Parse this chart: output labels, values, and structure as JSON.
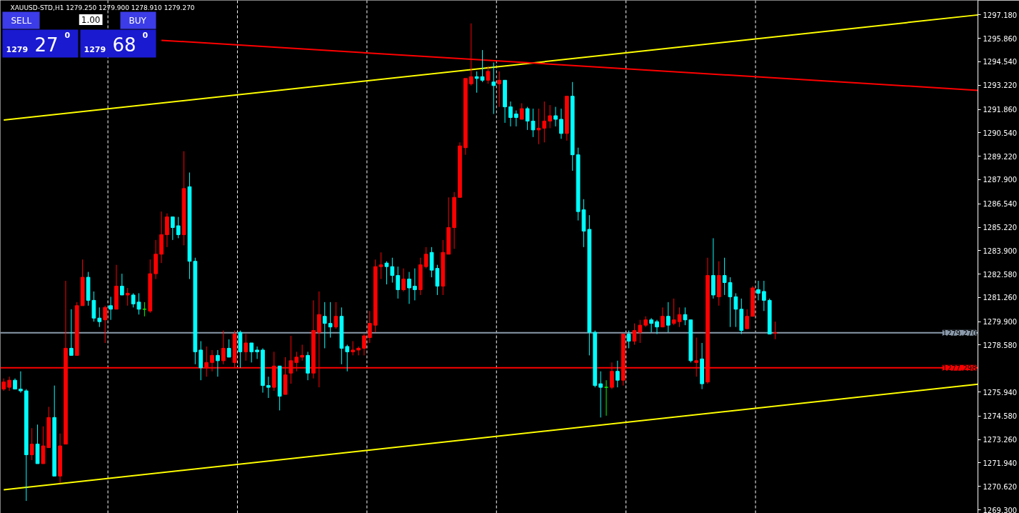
{
  "chart_data": {
    "type": "candlestick",
    "title": "XAUUSD-STD,H1  1279.250 1279.900 1278.910 1279.270",
    "annotations": [
      "SELL",
      "1.00",
      "BUY",
      "1279",
      "27",
      "0",
      "1279",
      "68",
      "0"
    ],
    "categories": [
      null,
      null,
      null,
      null,
      null,
      null,
      null,
      null,
      null,
      null,
      null,
      null,
      null,
      null,
      null,
      null,
      null,
      null,
      null,
      null,
      null,
      null,
      null,
      null,
      null,
      null,
      null,
      null,
      null,
      null,
      null,
      null,
      null,
      null,
      null,
      null,
      null,
      null,
      null,
      null,
      null,
      null,
      null,
      null,
      null,
      null,
      null,
      null,
      null,
      null,
      null,
      null,
      null,
      null,
      null,
      null,
      null,
      null,
      null,
      null,
      null,
      null,
      null,
      null,
      null,
      null,
      null,
      null,
      null,
      null,
      null,
      null,
      null,
      null,
      null,
      null,
      null,
      null,
      null,
      null,
      null,
      null,
      null,
      null,
      null,
      null,
      null,
      null,
      null,
      null,
      null,
      null,
      null,
      null,
      null,
      null,
      null,
      null,
      null,
      null,
      null,
      null,
      null,
      null,
      null,
      null,
      null,
      null,
      null,
      null,
      null,
      null,
      null,
      null,
      null,
      null,
      null,
      null,
      null,
      null,
      null,
      null,
      null,
      null,
      null,
      null,
      null,
      null,
      null,
      null,
      null,
      null,
      null,
      null,
      null,
      null,
      null,
      null,
      null,
      null,
      null,
      null,
      null,
      null,
      null,
      null,
      null,
      null,
      null,
      null,
      null,
      null,
      null,
      null,
      null,
      null,
      null,
      null,
      null,
      null,
      null,
      null,
      null,
      null,
      null,
      null,
      null,
      null,
      null,
      null,
      null,
      null,
      null,
      null
    ],
    "ohlc": [
      [
        1276.1,
        1276.7,
        1276.0,
        1276.5
      ],
      [
        1276.2,
        1276.8,
        1276.0,
        1276.6
      ],
      [
        1276.6,
        1276.7,
        1276.1,
        1276.1
      ],
      [
        1276.1,
        1277.1,
        1275.9,
        1276.0
      ],
      [
        1276.0,
        1276.1,
        1269.8,
        1272.4
      ],
      [
        1272.4,
        1273.9,
        1272.1,
        1273.0
      ],
      [
        1273.0,
        1274.1,
        1271.9,
        1271.9
      ],
      [
        1271.9,
        1274.0,
        1271.9,
        1272.9
      ],
      [
        1272.8,
        1275.1,
        1272.8,
        1274.5
      ],
      [
        1274.5,
        1276.3,
        1271.2,
        1271.2
      ],
      [
        1271.2,
        1273.6,
        1270.8,
        1272.9
      ],
      [
        1273.0,
        1282.2,
        1273.0,
        1278.4
      ],
      [
        1278.4,
        1280.6,
        1278.0,
        1278.0
      ],
      [
        1278.0,
        1281.0,
        1278.0,
        1280.8
      ],
      [
        1280.8,
        1283.4,
        1280.8,
        1282.4
      ],
      [
        1282.4,
        1282.7,
        1280.8,
        1281.1
      ],
      [
        1281.1,
        1281.6,
        1279.9,
        1280.1
      ],
      [
        1280.1,
        1280.7,
        1279.6,
        1279.9
      ],
      [
        1280.0,
        1280.8,
        1278.7,
        1280.7
      ],
      [
        1280.8,
        1281.3,
        1280.0,
        1280.6
      ],
      [
        1280.6,
        1283.1,
        1280.6,
        1281.9
      ],
      [
        1281.9,
        1282.6,
        1281.4,
        1281.4
      ],
      [
        1281.4,
        1281.8,
        1280.8,
        1281.5
      ],
      [
        1281.4,
        1281.5,
        1280.7,
        1280.9
      ],
      [
        1281.0,
        1281.5,
        1280.3,
        1280.6
      ],
      [
        1280.6,
        1281.0,
        1280.2,
        1280.6
      ],
      [
        1280.5,
        1283.4,
        1280.4,
        1282.6
      ],
      [
        1282.6,
        1284.5,
        1282.3,
        1283.7
      ],
      [
        1283.7,
        1286.1,
        1283.2,
        1284.8
      ],
      [
        1284.8,
        1286.0,
        1284.1,
        1285.8
      ],
      [
        1285.8,
        1285.8,
        1284.5,
        1285.2
      ],
      [
        1285.3,
        1285.8,
        1284.6,
        1284.8
      ],
      [
        1284.8,
        1289.5,
        1284.2,
        1287.4
      ],
      [
        1287.5,
        1288.3,
        1282.3,
        1283.3
      ],
      [
        1283.3,
        1283.5,
        1277.5,
        1278.2
      ],
      [
        1278.3,
        1278.8,
        1276.6,
        1277.3
      ],
      [
        1277.3,
        1278.5,
        1276.8,
        1277.6
      ],
      [
        1277.6,
        1278.3,
        1277.1,
        1278.0
      ],
      [
        1278.0,
        1278.3,
        1276.8,
        1277.7
      ],
      [
        1277.7,
        1279.4,
        1277.5,
        1278.4
      ],
      [
        1278.4,
        1278.9,
        1277.9,
        1277.9
      ],
      [
        1277.6,
        1279.4,
        1277.3,
        1279.2
      ],
      [
        1279.3,
        1279.4,
        1277.3,
        1278.2
      ],
      [
        1278.2,
        1279.2,
        1277.7,
        1278.7
      ],
      [
        1278.7,
        1278.7,
        1277.6,
        1278.2
      ],
      [
        1278.3,
        1278.5,
        1277.8,
        1278.2
      ],
      [
        1278.3,
        1278.4,
        1275.9,
        1276.3
      ],
      [
        1276.3,
        1276.8,
        1275.6,
        1276.2
      ],
      [
        1276.2,
        1278.2,
        1276.0,
        1277.4
      ],
      [
        1277.4,
        1277.4,
        1274.9,
        1275.7
      ],
      [
        1275.8,
        1277.9,
        1275.8,
        1276.9
      ],
      [
        1277.0,
        1279.1,
        1276.4,
        1277.7
      ],
      [
        1277.6,
        1278.2,
        1277.1,
        1277.9
      ],
      [
        1277.9,
        1278.6,
        1277.7,
        1278.0
      ],
      [
        1278.0,
        1278.2,
        1276.6,
        1277.0
      ],
      [
        1277.0,
        1281.1,
        1276.7,
        1279.4
      ],
      [
        1279.3,
        1281.6,
        1276.2,
        1280.3
      ],
      [
        1280.2,
        1281.0,
        1278.4,
        1279.8
      ],
      [
        1279.8,
        1281.0,
        1279.0,
        1279.6
      ],
      [
        1279.6,
        1281.0,
        1279.5,
        1280.2
      ],
      [
        1280.2,
        1280.7,
        1277.5,
        1278.4
      ],
      [
        1278.5,
        1278.6,
        1277.1,
        1278.2
      ],
      [
        1278.2,
        1278.8,
        1278.0,
        1278.3
      ],
      [
        1278.3,
        1278.5,
        1278.0,
        1278.4
      ],
      [
        1278.4,
        1279.2,
        1278.0,
        1279.1
      ],
      [
        1279.0,
        1280.5,
        1278.7,
        1279.8
      ],
      [
        1279.7,
        1283.4,
        1279.3,
        1283.0
      ],
      [
        1283.0,
        1283.8,
        1282.3,
        1283.1
      ],
      [
        1283.2,
        1283.3,
        1282.0,
        1283.0
      ],
      [
        1283.0,
        1283.5,
        1282.1,
        1282.5
      ],
      [
        1282.5,
        1283.0,
        1281.2,
        1281.7
      ],
      [
        1281.7,
        1282.9,
        1281.6,
        1282.3
      ],
      [
        1282.3,
        1282.7,
        1280.9,
        1281.8
      ],
      [
        1281.9,
        1282.9,
        1281.1,
        1281.7
      ],
      [
        1281.7,
        1283.5,
        1281.4,
        1283.1
      ],
      [
        1283.0,
        1284.1,
        1282.9,
        1283.7
      ],
      [
        1283.8,
        1284.1,
        1282.4,
        1282.8
      ],
      [
        1282.9,
        1283.1,
        1281.4,
        1281.9
      ],
      [
        1281.9,
        1284.5,
        1281.4,
        1283.8
      ],
      [
        1283.7,
        1286.9,
        1283.7,
        1285.2
      ],
      [
        1285.2,
        1287.2,
        1284.0,
        1286.9
      ],
      [
        1286.9,
        1290.0,
        1286.9,
        1289.8
      ],
      [
        1289.7,
        1293.6,
        1289.3,
        1293.6
      ],
      [
        1293.3,
        1296.7,
        1293.2,
        1293.7
      ],
      [
        1293.7,
        1294.0,
        1292.8,
        1293.6
      ],
      [
        1293.7,
        1295.2,
        1293.4,
        1293.5
      ],
      [
        1293.5,
        1294.3,
        1293.3,
        1294.0
      ],
      [
        1293.4,
        1294.5,
        1291.6,
        1293.2
      ],
      [
        1293.3,
        1294.0,
        1292.0,
        1293.5
      ],
      [
        1293.5,
        1293.5,
        1291.1,
        1292.0
      ],
      [
        1292.0,
        1292.3,
        1290.9,
        1291.4
      ],
      [
        1291.6,
        1291.8,
        1290.9,
        1291.4
      ],
      [
        1291.3,
        1292.2,
        1291.3,
        1291.9
      ],
      [
        1291.9,
        1292.0,
        1290.7,
        1291.2
      ],
      [
        1291.2,
        1291.9,
        1290.3,
        1290.7
      ],
      [
        1290.7,
        1291.9,
        1289.9,
        1290.8
      ],
      [
        1290.8,
        1292.3,
        1290.0,
        1291.2
      ],
      [
        1291.2,
        1292.1,
        1290.8,
        1291.5
      ],
      [
        1291.5,
        1292.0,
        1290.9,
        1291.3
      ],
      [
        1291.3,
        1291.9,
        1290.2,
        1290.5
      ],
      [
        1290.5,
        1292.6,
        1290.1,
        1292.6
      ],
      [
        1292.6,
        1293.4,
        1288.4,
        1289.3
      ],
      [
        1289.3,
        1289.7,
        1285.6,
        1286.1
      ],
      [
        1286.2,
        1286.8,
        1284.1,
        1285.0
      ],
      [
        1285.1,
        1285.9,
        1278.0,
        1279.3
      ],
      [
        1279.3,
        1279.4,
        1276.2,
        1276.3
      ],
      [
        1276.4,
        1277.1,
        1274.5,
        1276.2
      ],
      [
        1276.2,
        1276.6,
        1274.6,
        1276.2
      ],
      [
        1276.2,
        1277.6,
        1276.1,
        1277.1
      ],
      [
        1277.1,
        1277.7,
        1276.2,
        1276.6
      ],
      [
        1276.6,
        1279.2,
        1276.3,
        1279.2
      ],
      [
        1279.2,
        1279.4,
        1278.4,
        1278.8
      ],
      [
        1278.8,
        1279.8,
        1278.6,
        1279.4
      ],
      [
        1279.3,
        1280.0,
        1278.7,
        1279.7
      ],
      [
        1279.7,
        1280.2,
        1279.6,
        1280.0
      ],
      [
        1280.0,
        1280.1,
        1279.3,
        1279.8
      ],
      [
        1279.9,
        1280.0,
        1279.2,
        1279.6
      ],
      [
        1279.6,
        1280.7,
        1279.6,
        1280.2
      ],
      [
        1280.2,
        1281.0,
        1279.3,
        1279.7
      ],
      [
        1279.8,
        1281.2,
        1279.7,
        1280.0
      ],
      [
        1279.9,
        1280.7,
        1279.6,
        1280.3
      ],
      [
        1280.3,
        1280.7,
        1279.7,
        1280.0
      ],
      [
        1280.0,
        1280.0,
        1277.6,
        1277.7
      ],
      [
        1277.6,
        1279.0,
        1276.8,
        1277.7
      ],
      [
        1277.8,
        1278.7,
        1276.1,
        1276.4
      ],
      [
        1276.5,
        1283.5,
        1276.4,
        1282.5
      ],
      [
        1282.5,
        1284.6,
        1281.2,
        1281.4
      ],
      [
        1281.3,
        1283.3,
        1280.8,
        1282.5
      ],
      [
        1282.5,
        1283.5,
        1281.4,
        1282.1
      ],
      [
        1282.1,
        1282.4,
        1279.6,
        1281.3
      ],
      [
        1281.3,
        1281.5,
        1279.6,
        1280.6
      ],
      [
        1280.6,
        1281.2,
        1279.2,
        1279.4
      ],
      [
        1279.5,
        1280.6,
        1279.5,
        1280.2
      ],
      [
        1280.2,
        1281.9,
        1280.2,
        1281.8
      ],
      [
        1281.7,
        1282.2,
        1281.1,
        1281.5
      ],
      [
        1281.6,
        1282.2,
        1280.5,
        1281.1
      ],
      [
        1281.1,
        1281.2,
        1279.2,
        1279.2
      ],
      [
        1279.25,
        1279.9,
        1278.91,
        1279.27
      ],
      null,
      null,
      null,
      null,
      null,
      null,
      null,
      null,
      null,
      null,
      null,
      null,
      null,
      null,
      null,
      null,
      null,
      null,
      null,
      null,
      null,
      null,
      null,
      null,
      null,
      null,
      null,
      null,
      null,
      null,
      null,
      null,
      null,
      null,
      null,
      null
    ],
    "colors": [
      "#ff0000",
      "#ff0000",
      "#00ffff",
      "#00ffff",
      "#00ffff",
      "#ff0000",
      "#00ffff",
      "#ff0000",
      "#ff0000",
      "#00ffff",
      "#ff0000",
      "#ff0000",
      "#00ffff",
      "#ff0000",
      "#ff0000",
      "#00ffff",
      "#00ffff",
      "#00ffff",
      "#ff0000",
      "#00ffff",
      "#ff0000",
      "#00ffff",
      "#ff0000",
      "#00ffff",
      "#00ffff",
      "#00ff00",
      "#ff0000",
      "#ff0000",
      "#ff0000",
      "#ff0000",
      "#00ffff",
      "#00ffff",
      "#ff0000",
      "#00ffff",
      "#00ffff",
      "#00ffff",
      "#ff0000",
      "#ff0000",
      "#00ffff",
      "#ff0000",
      "#00ffff",
      "#ff0000",
      "#00ffff",
      "#ff0000",
      "#00ffff",
      "#00ffff",
      "#00ffff",
      "#00ffff",
      "#ff0000",
      "#00ffff",
      "#ff0000",
      "#ff0000",
      "#ff0000",
      "#ff0000",
      "#00ffff",
      "#ff0000",
      "#ff0000",
      "#00ffff",
      "#00ffff",
      "#ff0000",
      "#00ffff",
      "#00ffff",
      "#ff0000",
      "#ff0000",
      "#ff0000",
      "#ff0000",
      "#ff0000",
      "#ff0000",
      "#00ffff",
      "#00ffff",
      "#00ffff",
      "#ff0000",
      "#00ffff",
      "#00ffff",
      "#ff0000",
      "#ff0000",
      "#00ffff",
      "#00ffff",
      "#ff0000",
      "#ff0000",
      "#ff0000",
      "#ff0000",
      "#ff0000",
      "#ff0000",
      "#00ffff",
      "#00ffff",
      "#ff0000",
      "#00ffff",
      "#ff0000",
      "#00ffff",
      "#00ffff",
      "#00ffff",
      "#ff0000",
      "#00ffff",
      "#00ffff",
      "#ff0000",
      "#ff0000",
      "#ff0000",
      "#00ffff",
      "#00ffff",
      "#ff0000",
      "#00ffff",
      "#00ffff",
      "#00ffff",
      "#00ffff",
      "#00ffff",
      "#00ffff",
      "#00ff00",
      "#ff0000",
      "#00ffff",
      "#ff0000",
      "#00ffff",
      "#ff0000",
      "#ff0000",
      "#ff0000",
      "#00ffff",
      "#00ffff",
      "#ff0000",
      "#00ffff",
      "#ff0000",
      "#ff0000",
      "#00ffff",
      "#00ffff",
      "#ff0000",
      "#00ffff",
      "#ff0000",
      "#00ffff",
      "#ff0000",
      "#00ffff",
      "#00ffff",
      "#00ffff",
      "#00ffff",
      "#ff0000",
      "#ff0000",
      "#00ffff",
      "#00ffff",
      "#00ffff",
      "#ff0000",
      null,
      null,
      null,
      null,
      null,
      null,
      null,
      null,
      null,
      null,
      null,
      null,
      null,
      null,
      null,
      null,
      null,
      null,
      null,
      null,
      null,
      null,
      null,
      null,
      null,
      null,
      null,
      null,
      null,
      null,
      null,
      null,
      null,
      null,
      null,
      null
    ],
    "series": [
      {
        "type": "line",
        "color": "#ffff00",
        "values": [
          1291.26,
          null,
          null,
          null,
          null,
          null,
          null,
          null,
          null,
          null,
          null,
          null,
          null,
          null,
          null,
          null,
          null,
          null,
          null,
          null,
          null,
          null,
          null,
          null,
          null,
          null,
          null,
          null,
          null,
          null,
          null,
          null,
          null,
          null,
          null,
          null,
          null,
          null,
          null,
          null,
          null,
          null,
          null,
          null,
          null,
          null,
          null,
          null,
          null,
          null,
          null,
          null,
          null,
          null,
          null,
          null,
          null,
          null,
          null,
          null,
          null,
          null,
          null,
          null,
          null,
          null,
          null,
          null,
          null,
          null,
          null,
          null,
          null,
          null,
          null,
          null,
          null,
          null,
          null,
          null,
          null,
          null,
          null,
          null,
          null,
          null,
          null,
          null,
          null,
          null,
          null,
          null,
          null,
          null,
          null,
          null,
          null,
          null,
          null,
          null,
          null,
          null,
          null,
          null,
          null,
          null,
          null,
          null,
          null,
          null,
          null,
          null,
          null,
          null,
          null,
          null,
          null,
          null,
          null,
          null,
          null,
          null,
          null,
          null,
          null,
          null,
          null,
          null,
          null,
          null,
          null,
          null,
          null,
          null,
          null,
          null,
          null,
          null,
          null,
          null,
          null,
          null,
          null,
          null,
          null,
          null,
          null,
          null,
          null,
          null,
          null,
          null,
          null,
          null,
          null,
          null,
          null,
          null,
          null,
          null,
          null,
          null,
          null,
          null,
          null,
          null,
          null,
          null,
          null,
          null,
          null,
          null,
          null,
          1297.18
        ]
      },
      {
        "type": "line",
        "color": "#ffff00",
        "values": [
          1270.43,
          null,
          null,
          null,
          null,
          null,
          null,
          null,
          null,
          null,
          null,
          null,
          null,
          null,
          null,
          null,
          null,
          null,
          null,
          null,
          null,
          null,
          null,
          null,
          null,
          null,
          null,
          null,
          null,
          null,
          null,
          null,
          null,
          null,
          null,
          null,
          null,
          null,
          null,
          null,
          null,
          null,
          null,
          null,
          null,
          null,
          null,
          null,
          null,
          null,
          null,
          null,
          null,
          null,
          null,
          null,
          null,
          null,
          null,
          null,
          null,
          null,
          null,
          null,
          null,
          null,
          null,
          null,
          null,
          null,
          null,
          null,
          null,
          null,
          null,
          null,
          null,
          null,
          null,
          null,
          null,
          null,
          null,
          null,
          null,
          null,
          null,
          null,
          null,
          null,
          null,
          null,
          null,
          null,
          null,
          null,
          null,
          null,
          null,
          null,
          null,
          null,
          null,
          null,
          null,
          null,
          null,
          null,
          null,
          null,
          null,
          null,
          null,
          null,
          null,
          null,
          null,
          null,
          null,
          null,
          null,
          null,
          null,
          null,
          null,
          null,
          null,
          null,
          null,
          null,
          null,
          null,
          null,
          null,
          null,
          null,
          null,
          null,
          null,
          null,
          null,
          null,
          null,
          null,
          null,
          null,
          null,
          null,
          null,
          null,
          null,
          null,
          null,
          null,
          null,
          null,
          null,
          null,
          null,
          null,
          null,
          null,
          null,
          null,
          null,
          null,
          null,
          null,
          null,
          null,
          null,
          null,
          null,
          1276.38
        ]
      },
      {
        "type": "line",
        "color": "#ff0000",
        "values": [
          null,
          null,
          null,
          null,
          null,
          null,
          null,
          null,
          null,
          null,
          null,
          null,
          null,
          null,
          null,
          null,
          null,
          null,
          null,
          null,
          null,
          null,
          null,
          null,
          null,
          null,
          null,
          null,
          1295.75,
          null,
          null,
          null,
          null,
          null,
          null,
          null,
          null,
          null,
          null,
          null,
          null,
          null,
          null,
          null,
          null,
          null,
          null,
          null,
          null,
          null,
          null,
          null,
          null,
          null,
          null,
          null,
          null,
          null,
          null,
          null,
          null,
          null,
          null,
          null,
          null,
          null,
          null,
          null,
          null,
          null,
          null,
          null,
          null,
          null,
          null,
          null,
          null,
          null,
          null,
          null,
          null,
          null,
          null,
          null,
          null,
          null,
          null,
          null,
          null,
          null,
          null,
          null,
          null,
          null,
          null,
          null,
          null,
          null,
          null,
          null,
          null,
          null,
          null,
          null,
          null,
          null,
          null,
          null,
          null,
          null,
          null,
          null,
          null,
          null,
          null,
          null,
          null,
          null,
          null,
          null,
          null,
          null,
          null,
          null,
          null,
          null,
          null,
          null,
          null,
          null,
          null,
          null,
          null,
          null,
          null,
          null,
          null,
          null,
          null,
          null,
          null,
          null,
          null,
          null,
          null,
          null,
          null,
          null,
          null,
          null,
          null,
          null,
          null,
          null,
          null,
          null,
          null,
          null,
          null,
          null,
          null,
          null,
          null,
          null,
          null,
          null,
          null,
          null,
          null,
          null,
          null,
          null,
          null,
          1292.93
        ]
      }
    ],
    "ref_lines": [
      {
        "axis": "y",
        "value": 1279.27,
        "label": "1279.270",
        "color": "#8a9aaa",
        "line_style": "solid"
      },
      {
        "axis": "y",
        "value": 1277.298,
        "label": "1277.298",
        "color": "#ff0000",
        "line_style": "solid"
      }
    ],
    "ylim": [
      1269.1,
      1298.0
    ],
    "yticks": [
      {
        "value": 1297.18,
        "label": "1297.180"
      },
      {
        "value": 1295.86,
        "label": "1295.860"
      },
      {
        "value": 1294.54,
        "label": "1294.540"
      },
      {
        "value": 1293.22,
        "label": "1293.220"
      },
      {
        "value": 1291.86,
        "label": "1291.860"
      },
      {
        "value": 1290.54,
        "label": "1290.540"
      },
      {
        "value": 1289.22,
        "label": "1289.220"
      },
      {
        "value": 1287.9,
        "label": "1287.900"
      },
      {
        "value": 1286.54,
        "label": "1286.540"
      },
      {
        "value": 1285.22,
        "label": "1285.220"
      },
      {
        "value": 1283.9,
        "label": "1283.900"
      },
      {
        "value": 1282.58,
        "label": "1282.580"
      },
      {
        "value": 1281.26,
        "label": "1281.260"
      },
      {
        "value": 1279.9,
        "label": "1279.900"
      },
      {
        "value": 1278.58,
        "label": "1278.580"
      },
      {
        "value": 1275.94,
        "label": "1275.940"
      },
      {
        "value": 1274.58,
        "label": "1274.580"
      },
      {
        "value": 1273.26,
        "label": "1273.260"
      },
      {
        "value": 1271.94,
        "label": "1271.940"
      },
      {
        "value": 1270.62,
        "label": "1270.620"
      },
      {
        "value": 1269.3,
        "label": "1269.300"
      }
    ],
    "tick_labels": "y",
    "grid": false
  }
}
